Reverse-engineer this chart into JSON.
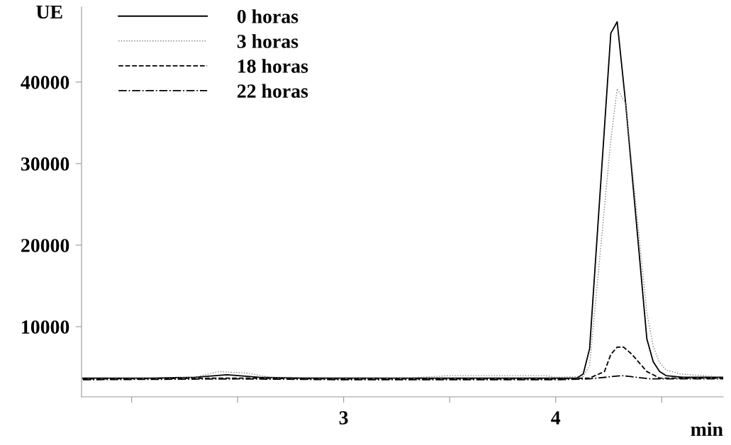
{
  "chart_data": {
    "type": "line",
    "xlabel": "min",
    "ylabel": "UE",
    "xlim": [
      1.764,
      4.79
    ],
    "xticks": [
      {
        "value": 2,
        "label": null
      },
      {
        "value": 2.5,
        "label": null
      },
      3,
      {
        "value": 3.5,
        "label": null
      },
      4,
      {
        "value": 4.5,
        "label": null
      }
    ],
    "ylim": [
      1400,
      49200
    ],
    "yticks": [
      10000,
      20000,
      30000,
      40000
    ],
    "legend": "top left",
    "grid": false,
    "series": [
      {
        "name": "0 horas",
        "color": "#000000",
        "line_style": "solid",
        "x": [
          1.77,
          2.1,
          2.3,
          2.45,
          2.6,
          2.8,
          3.5,
          4.0,
          4.1,
          4.13,
          4.16,
          4.26,
          4.29,
          4.33,
          4.43,
          4.46,
          4.49,
          4.52,
          4.6,
          4.79
        ],
        "values": [
          3700,
          3700,
          3800,
          4100,
          3800,
          3700,
          3700,
          3700,
          3700,
          4200,
          7300,
          46000,
          47400,
          37400,
          8500,
          5700,
          4500,
          4000,
          3800,
          3800
        ]
      },
      {
        "name": "3 horas",
        "color": "#808080",
        "line_style": "dotted",
        "x": [
          1.77,
          2.1,
          2.3,
          2.41,
          2.55,
          2.65,
          3.3,
          3.5,
          3.95,
          4.0,
          4.13,
          4.16,
          4.26,
          4.29,
          4.33,
          4.43,
          4.46,
          4.49,
          4.52,
          4.59,
          4.79
        ],
        "values": [
          3600,
          3700,
          3800,
          4500,
          4300,
          3800,
          3700,
          4000,
          4000,
          3800,
          3900,
          5200,
          32900,
          39200,
          37400,
          11700,
          7600,
          5600,
          4700,
          4200,
          3800
        ]
      },
      {
        "name": "18 horas",
        "color": "#000000",
        "line_style": "dashed",
        "x": [
          1.77,
          2.5,
          3.0,
          4.0,
          4.16,
          4.23,
          4.26,
          4.29,
          4.32,
          4.36,
          4.43,
          4.49,
          4.79
        ],
        "values": [
          3600,
          3700,
          3600,
          3600,
          3700,
          4500,
          6600,
          7500,
          7500,
          6600,
          4500,
          3700,
          3700
        ]
      },
      {
        "name": "22 horas",
        "color": "#000000",
        "line_style": "dashdot",
        "x": [
          1.77,
          2.5,
          3.0,
          4.0,
          4.16,
          4.31,
          4.45,
          4.79
        ],
        "values": [
          3500,
          3600,
          3500,
          3500,
          3600,
          4000,
          3600,
          3600
        ]
      }
    ]
  }
}
